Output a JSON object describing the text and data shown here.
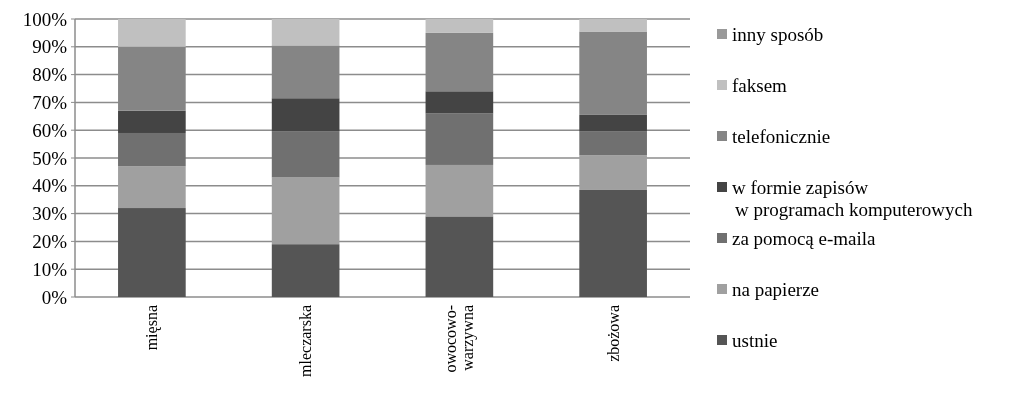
{
  "chart_data": {
    "type": "bar",
    "stacked": true,
    "categories": [
      "mięsna",
      "mleczarska",
      "owocowo-warzywna",
      "zbożowa"
    ],
    "series": [
      {
        "name": "ustnie",
        "color": "#555555",
        "values": [
          32,
          19,
          29,
          38.5
        ]
      },
      {
        "name": "na papierze",
        "color": "#a0a0a0",
        "values": [
          15,
          24,
          18.5,
          12.5
        ]
      },
      {
        "name": "za pomocą e-maila",
        "color": "#707070",
        "values": [
          12,
          16.5,
          18.5,
          8.5
        ]
      },
      {
        "name": "w formie zapisów w programach komputerowych",
        "color": "#444444",
        "values": [
          8,
          12,
          8,
          6
        ]
      },
      {
        "name": "telefonicznie",
        "color": "#858585",
        "values": [
          23,
          19,
          21,
          30
        ]
      },
      {
        "name": "faksem",
        "color": "#c0c0c0",
        "values": [
          10,
          9.5,
          5,
          4.5
        ]
      },
      {
        "name": "inny sposób",
        "color": "#999999",
        "values": [
          0,
          0,
          0,
          0
        ]
      }
    ],
    "ylim": [
      0,
      100
    ],
    "yticks": [
      {
        "value": 0,
        "label": "0%"
      },
      {
        "value": 10,
        "label": "10%"
      },
      {
        "value": 20,
        "label": "20%"
      },
      {
        "value": 30,
        "label": "30%"
      },
      {
        "value": 40,
        "label": "40%"
      },
      {
        "value": 50,
        "label": "50%"
      },
      {
        "value": 60,
        "label": "60%"
      },
      {
        "value": 70,
        "label": "70%"
      },
      {
        "value": 80,
        "label": "80%"
      },
      {
        "value": 90,
        "label": "90%"
      },
      {
        "value": 100,
        "label": "100%"
      }
    ],
    "grid": "y",
    "legend": "right"
  }
}
